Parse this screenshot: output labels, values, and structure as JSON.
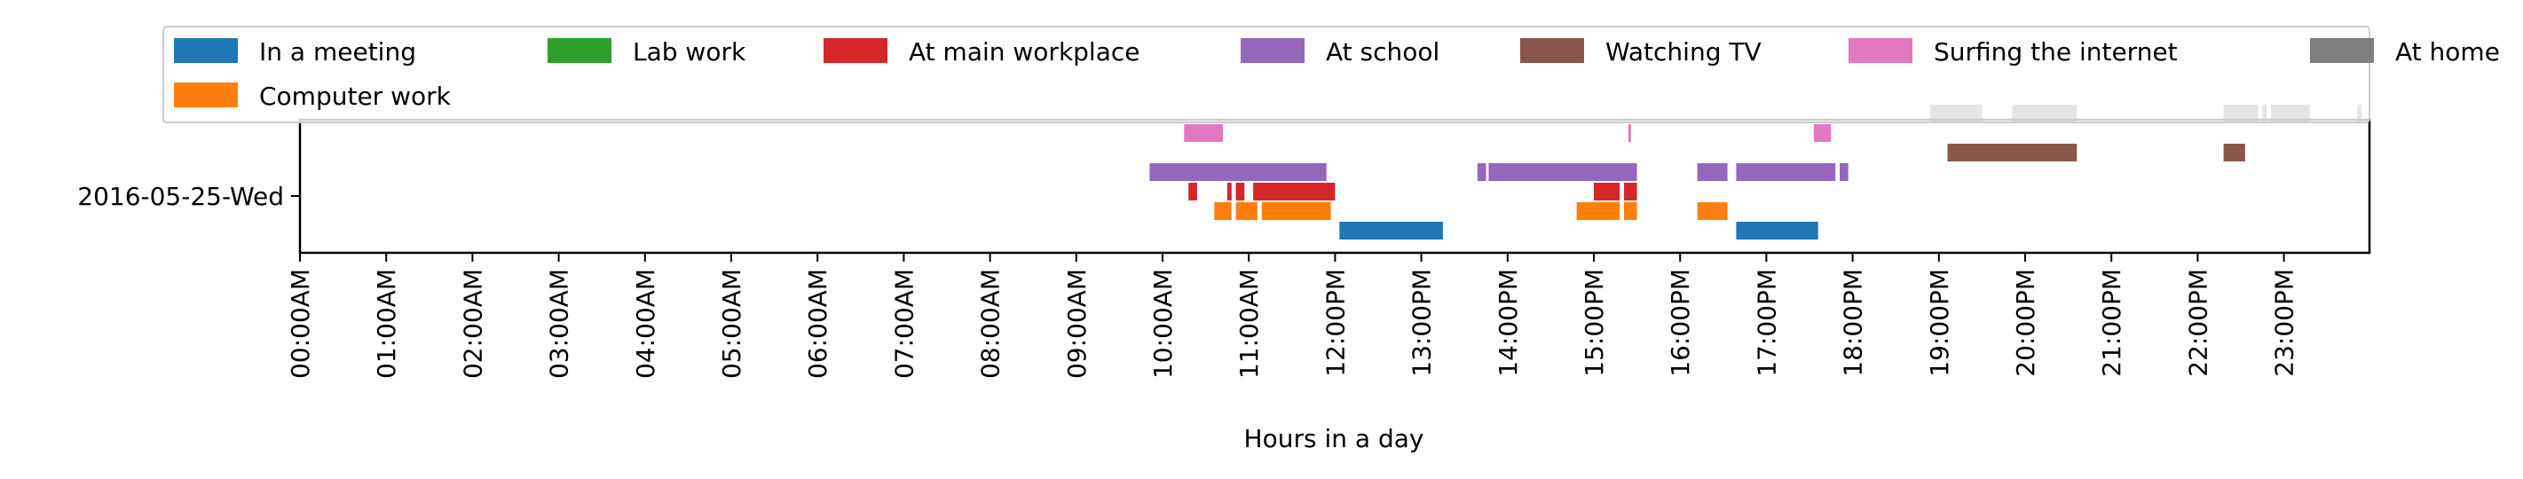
{
  "chart_data": {
    "type": "timeline",
    "xlabel": "Hours in a day",
    "ylabel": "",
    "x_tick_labels": [
      "00:00AM",
      "01:00AM",
      "02:00AM",
      "03:00AM",
      "04:00AM",
      "05:00AM",
      "06:00AM",
      "07:00AM",
      "08:00AM",
      "09:00AM",
      "10:00AM",
      "11:00AM",
      "12:00PM",
      "13:00PM",
      "14:00PM",
      "15:00PM",
      "16:00PM",
      "17:00PM",
      "18:00PM",
      "19:00PM",
      "20:00PM",
      "21:00PM",
      "22:00PM",
      "23:00PM"
    ],
    "xlim": [
      0,
      24
    ],
    "rows": [
      "2016-05-25-Wed"
    ],
    "legend_position": "top",
    "series": [
      {
        "name": "In a meeting",
        "color": "#1f77b4",
        "lane": 0,
        "intervals": [
          [
            12.05,
            13.25
          ],
          [
            16.65,
            17.6
          ]
        ]
      },
      {
        "name": "Computer work",
        "color": "#ff7f0e",
        "lane": 1,
        "intervals": [
          [
            10.6,
            10.8
          ],
          [
            10.85,
            11.1
          ],
          [
            11.15,
            11.95
          ],
          [
            14.8,
            15.3
          ],
          [
            15.35,
            15.5
          ],
          [
            16.2,
            16.55
          ]
        ]
      },
      {
        "name": "Lab work",
        "color": "#2ca02c",
        "lane": 2,
        "intervals": []
      },
      {
        "name": "At main workplace",
        "color": "#d62728",
        "lane": 2,
        "intervals": [
          [
            10.3,
            10.4
          ],
          [
            10.75,
            10.8
          ],
          [
            10.85,
            10.95
          ],
          [
            11.05,
            12.0
          ],
          [
            15.0,
            15.3
          ],
          [
            15.35,
            15.5
          ]
        ]
      },
      {
        "name": "At school",
        "color": "#9467bd",
        "lane": 3,
        "intervals": [
          [
            9.85,
            11.9
          ],
          [
            13.65,
            13.75
          ],
          [
            13.78,
            15.5
          ],
          [
            16.2,
            16.55
          ],
          [
            16.65,
            17.8
          ],
          [
            17.85,
            17.95
          ]
        ]
      },
      {
        "name": "Watching TV",
        "color": "#8c564b",
        "lane": 4,
        "intervals": [
          [
            19.1,
            20.6
          ],
          [
            22.3,
            22.55
          ]
        ]
      },
      {
        "name": "Surfing the internet",
        "color": "#e377c2",
        "lane": 5,
        "intervals": [
          [
            10.25,
            10.7
          ],
          [
            15.4,
            15.43
          ],
          [
            17.55,
            17.75
          ]
        ]
      },
      {
        "name": "At home",
        "color": "#7f7f7f",
        "lane": 6,
        "intervals": [
          [
            18.9,
            19.5
          ],
          [
            19.85,
            20.6
          ],
          [
            22.3,
            22.7
          ],
          [
            22.75,
            22.8
          ],
          [
            22.85,
            23.3
          ],
          [
            23.85,
            23.9
          ]
        ]
      }
    ]
  }
}
